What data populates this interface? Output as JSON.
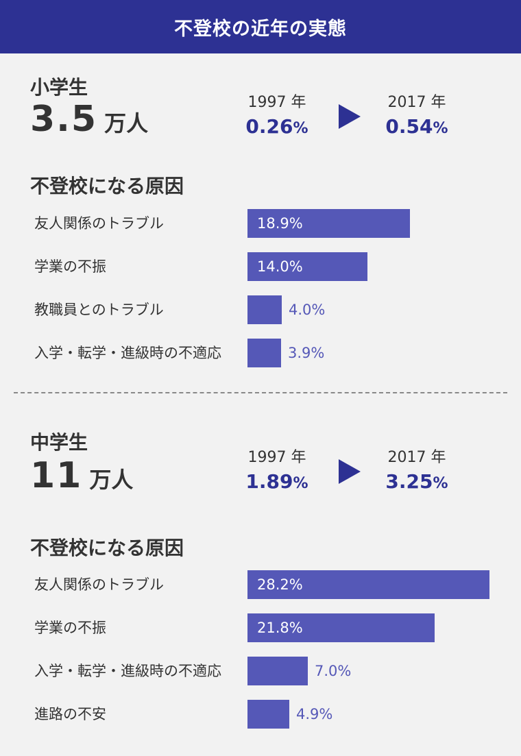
{
  "header": {
    "title": "不登校の近年の実態"
  },
  "chart_data": [
    {
      "type": "bar",
      "orientation": "horizontal",
      "section_label": "小学生",
      "total": {
        "value": "3.5",
        "unit": "万人"
      },
      "comparison": {
        "from": {
          "year": "1997 年",
          "value": "0.26",
          "unit": "%"
        },
        "to": {
          "year": "2017 年",
          "value": "0.54",
          "unit": "%"
        }
      },
      "title": "不登校になる原因",
      "categories": [
        "友人関係のトラブル",
        "学業の不振",
        "教職員とのトラブル",
        "入学・転学・進級時の不適応"
      ],
      "values": [
        18.9,
        14.0,
        4.0,
        3.9
      ],
      "value_labels": [
        "18.9%",
        "14.0%",
        "4.0%",
        "3.9%"
      ],
      "xlim": [
        0,
        28.2
      ],
      "grid": false,
      "bar_color": "#5558b7"
    },
    {
      "type": "bar",
      "orientation": "horizontal",
      "section_label": "中学生",
      "total": {
        "value": "11",
        "unit": "万人"
      },
      "comparison": {
        "from": {
          "year": "1997 年",
          "value": "1.89",
          "unit": "%"
        },
        "to": {
          "year": "2017 年",
          "value": "3.25",
          "unit": "%"
        }
      },
      "title": "不登校になる原因",
      "categories": [
        "友人関係のトラブル",
        "学業の不振",
        "入学・転学・進級時の不適応",
        "進路の不安"
      ],
      "values": [
        28.2,
        21.8,
        7.0,
        4.9
      ],
      "value_labels": [
        "28.2%",
        "21.8%",
        "7.0%",
        "4.9%"
      ],
      "xlim": [
        0,
        28.2
      ],
      "grid": false,
      "bar_color": "#5558b7"
    }
  ],
  "colors": {
    "header_bg": "#2d3193",
    "accent": "#2d3193",
    "bar": "#5558b7"
  },
  "icons": {
    "arrow": "play-triangle-icon"
  }
}
